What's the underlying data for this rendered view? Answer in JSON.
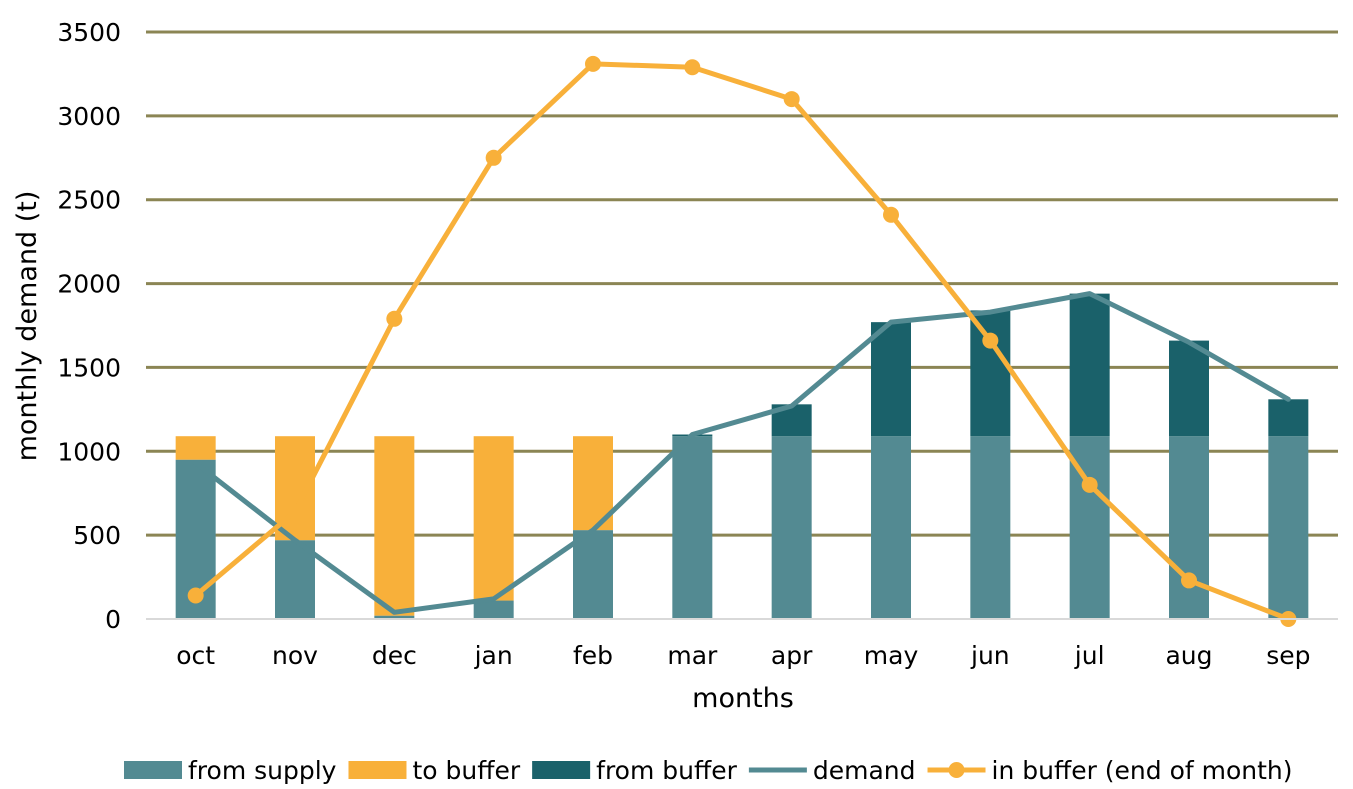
{
  "chart_data": {
    "type": "bar",
    "categories": [
      "oct",
      "nov",
      "dec",
      "jan",
      "feb",
      "mar",
      "apr",
      "may",
      "jun",
      "jul",
      "aug",
      "sep"
    ],
    "stacked_series": [
      {
        "name": "from supply",
        "color": "#538A92",
        "values": [
          950,
          470,
          20,
          110,
          530,
          1090,
          1090,
          1090,
          1090,
          1090,
          1090,
          1090
        ]
      },
      {
        "name": "to buffer",
        "color": "#F8B03A",
        "values": [
          140,
          620,
          1070,
          980,
          560,
          0,
          0,
          0,
          0,
          0,
          0,
          0
        ]
      },
      {
        "name": "from buffer",
        "color": "#1A616A",
        "values": [
          0,
          0,
          0,
          0,
          0,
          10,
          190,
          680,
          750,
          850,
          570,
          220
        ]
      }
    ],
    "line_series": [
      {
        "name": "demand",
        "color": "#538A92",
        "markers": false,
        "values": [
          930,
          470,
          40,
          120,
          530,
          1100,
          1270,
          1770,
          1830,
          1940,
          1650,
          1310
        ]
      },
      {
        "name": "in buffer (end of month)",
        "color": "#F8B03A",
        "markers": true,
        "values": [
          140,
          640,
          1790,
          2750,
          3310,
          3290,
          3100,
          2410,
          1660,
          800,
          230,
          0
        ]
      }
    ],
    "xlabel": "months",
    "ylabel": "monthly demand (t)",
    "ylim": [
      0,
      3500
    ],
    "yticks": [
      0,
      500,
      1000,
      1500,
      2000,
      2500,
      3000,
      3500
    ],
    "gridlines": true,
    "gridline_color": "#8B8554",
    "legend_position": "bottom"
  }
}
